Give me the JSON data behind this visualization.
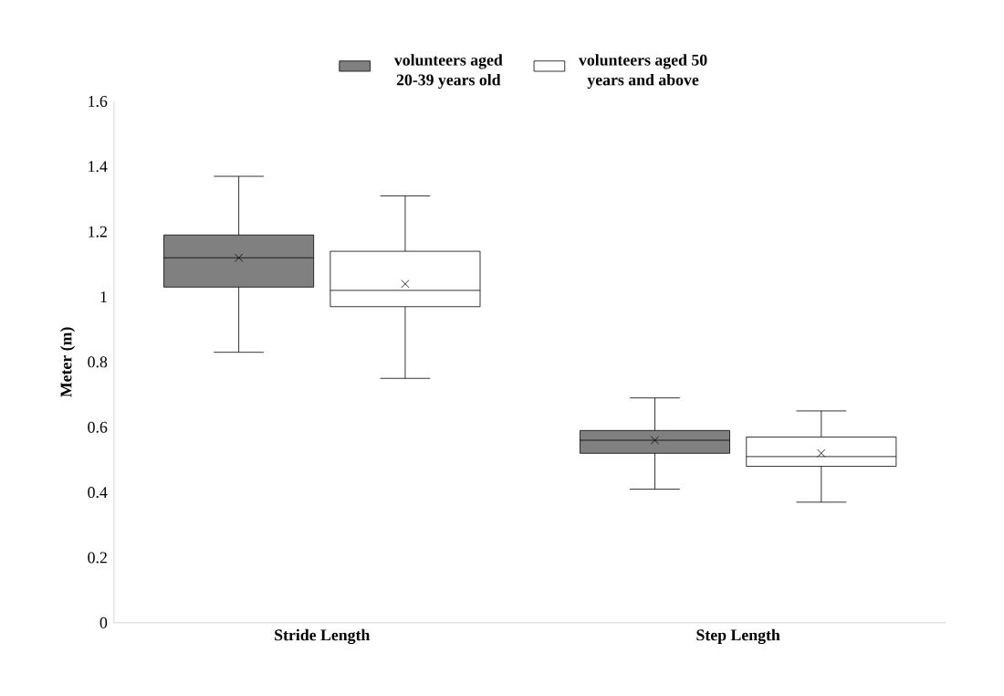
{
  "chart_data": {
    "type": "box",
    "ylabel": "Meter (m)",
    "categories": [
      "Stride Length",
      "Step Length"
    ],
    "series": [
      {
        "name": "volunteers aged 20-39 years old",
        "color": "#808080",
        "boxes": [
          {
            "low": 0.83,
            "q1": 1.03,
            "median": 1.12,
            "q3": 1.19,
            "high": 1.37,
            "mean": 1.12
          },
          {
            "low": 0.41,
            "q1": 0.52,
            "median": 0.56,
            "q3": 0.59,
            "high": 0.69,
            "mean": 0.56
          }
        ]
      },
      {
        "name": "volunteers aged 50 years and above",
        "color": "#ffffff",
        "boxes": [
          {
            "low": 0.75,
            "q1": 0.97,
            "median": 1.02,
            "q3": 1.14,
            "high": 1.31,
            "mean": 1.04
          },
          {
            "low": 0.37,
            "q1": 0.48,
            "median": 0.51,
            "q3": 0.57,
            "high": 0.65,
            "mean": 0.52
          }
        ]
      }
    ],
    "ylim": [
      0,
      1.6
    ],
    "yticks": [
      0,
      0.2,
      0.4,
      0.6,
      0.8,
      1,
      1.2,
      1.4,
      1.6
    ],
    "grid": false,
    "legend": "top"
  }
}
